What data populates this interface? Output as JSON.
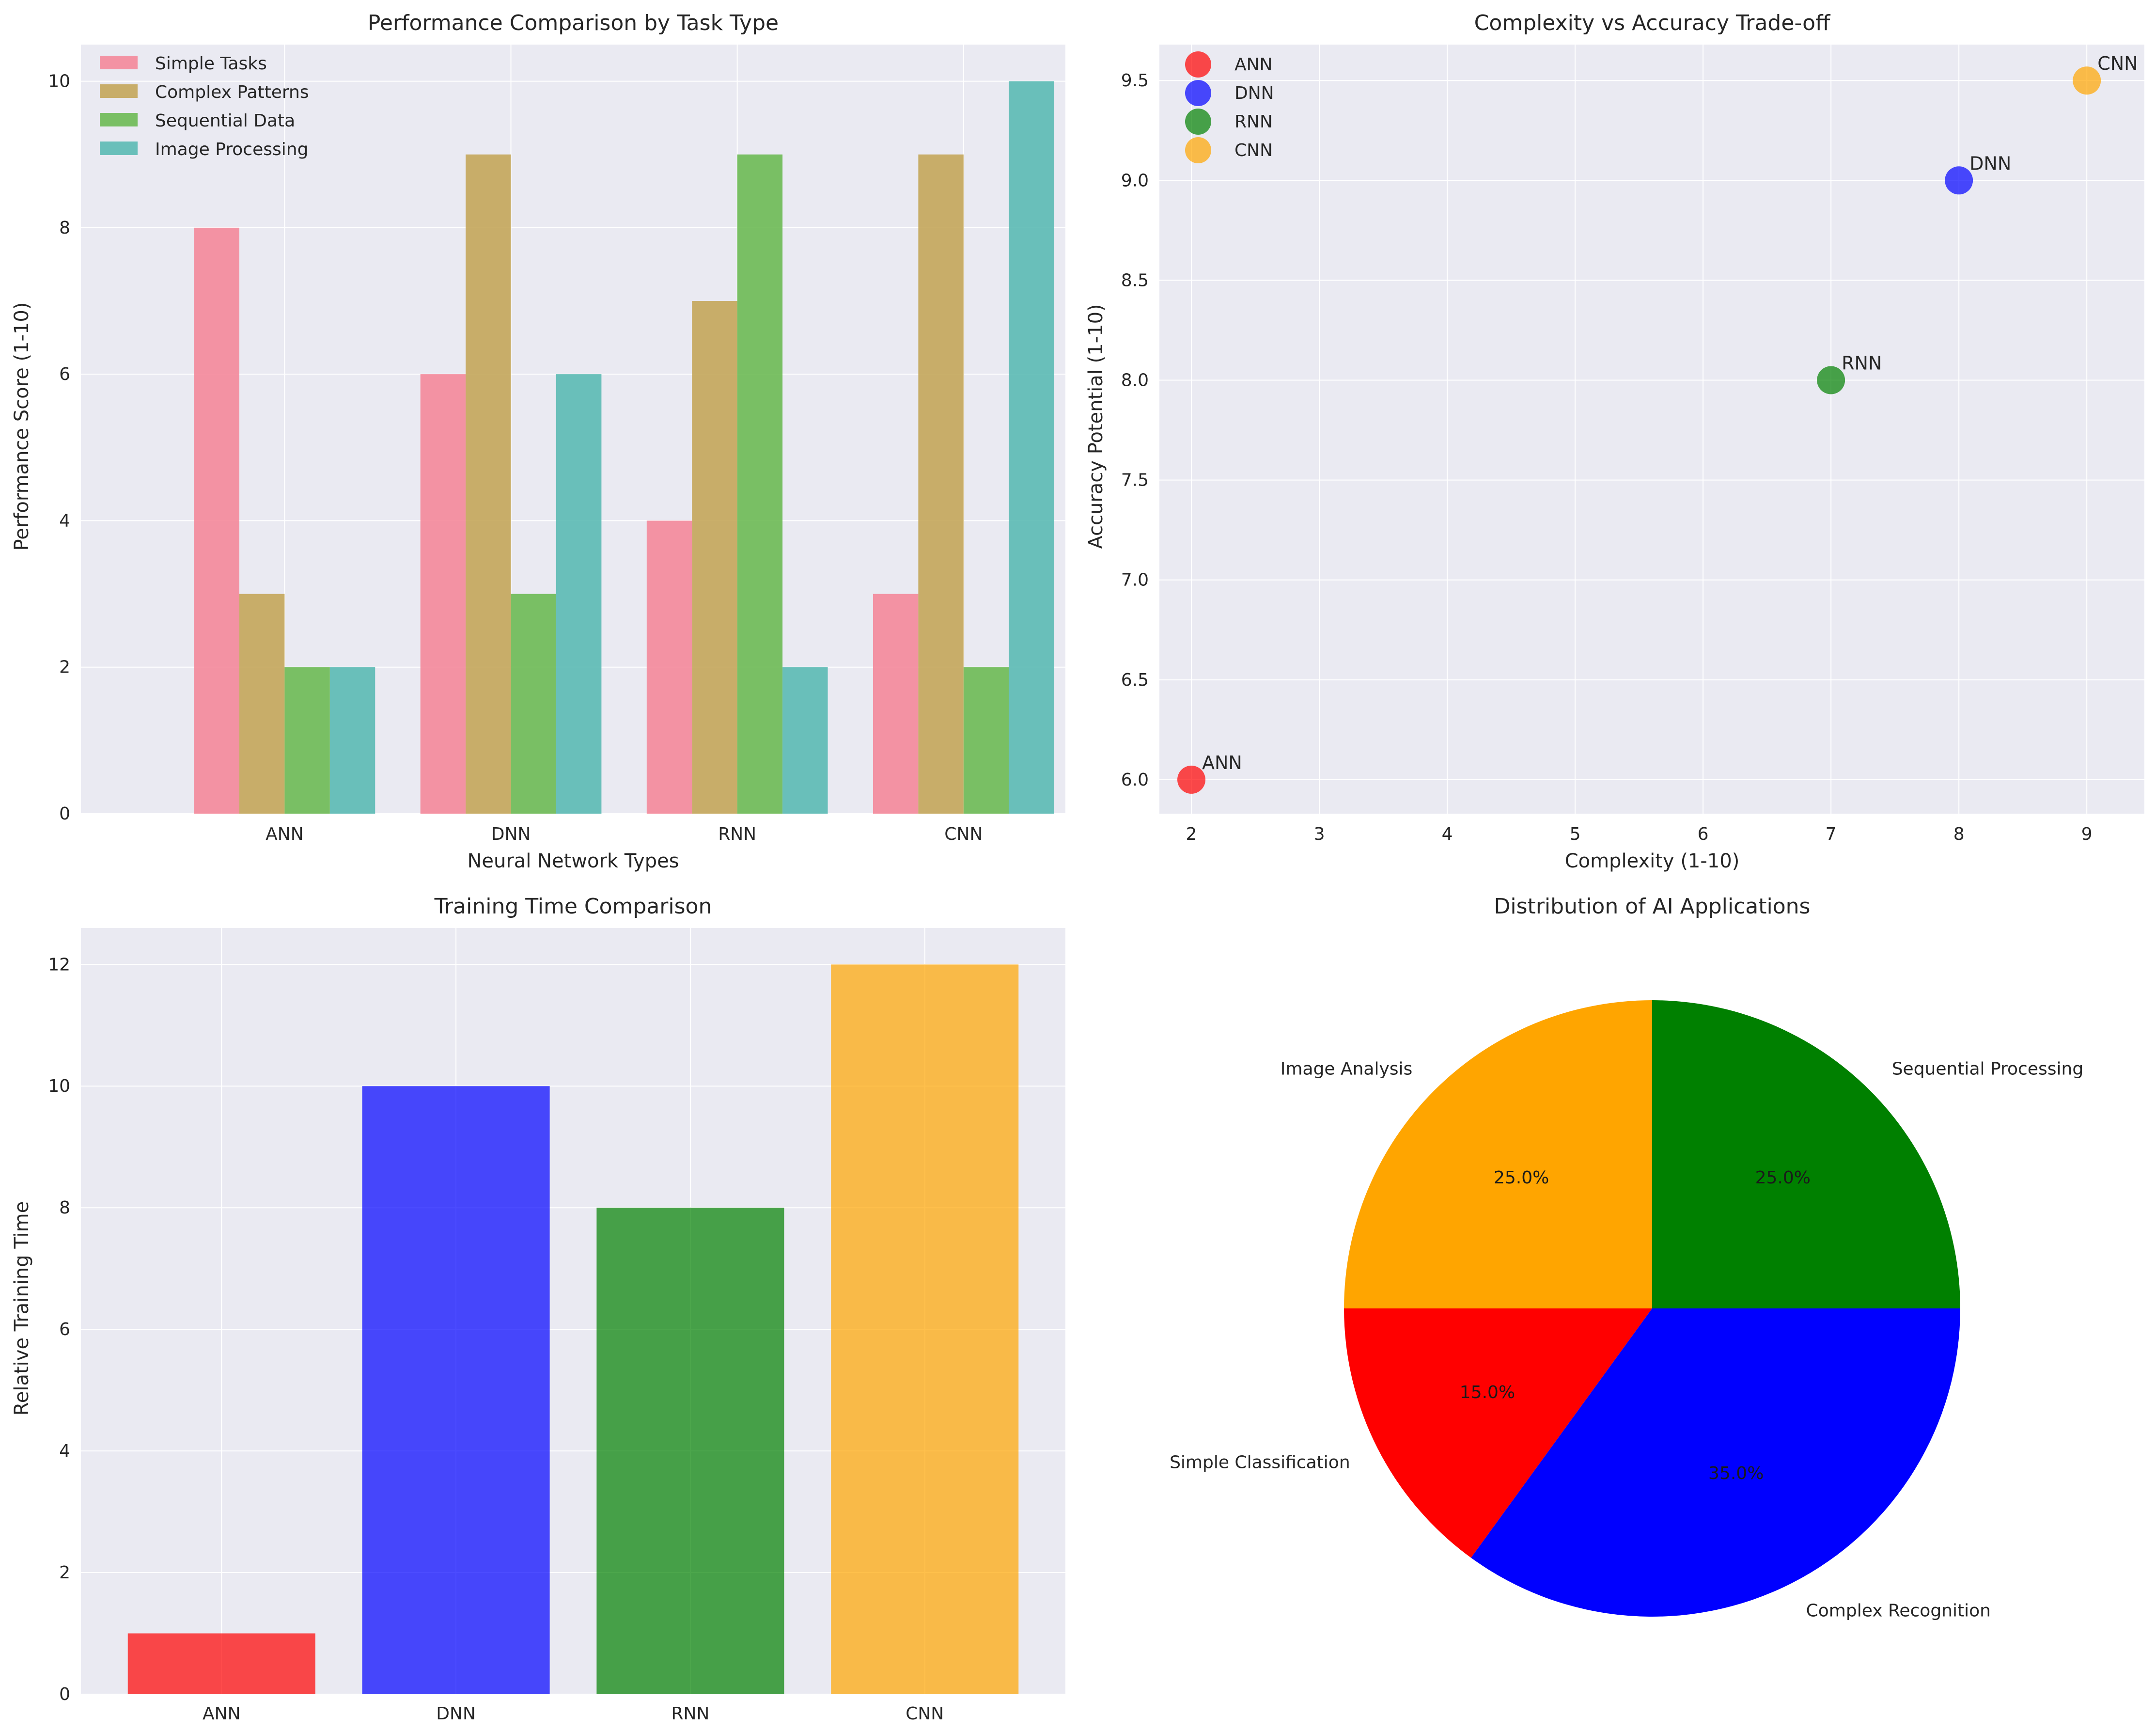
{
  "chart_data": [
    {
      "type": "bar",
      "title": "Performance Comparison by Task Type",
      "xlabel": "Neural Network Types",
      "ylabel": "Performance Score (1-10)",
      "categories": [
        "ANN",
        "DNN",
        "RNN",
        "CNN"
      ],
      "ylim": [
        0,
        10.5
      ],
      "yticks": [
        0,
        2,
        4,
        6,
        8,
        10
      ],
      "grid": true,
      "legend_position": "top-left",
      "series": [
        {
          "name": "Simple Tasks",
          "values": [
            8,
            6,
            4,
            3
          ],
          "color": "#f4889a"
        },
        {
          "name": "Complex Patterns",
          "values": [
            3,
            9,
            7,
            9
          ],
          "color": "#c4a65a"
        },
        {
          "name": "Sequential Data",
          "values": [
            2,
            3,
            9,
            2
          ],
          "color": "#6dba54"
        },
        {
          "name": "Image Processing",
          "values": [
            2,
            6,
            2,
            10
          ],
          "color": "#5bbab4"
        }
      ]
    },
    {
      "type": "scatter",
      "title": "Complexity vs Accuracy Trade-off",
      "xlabel": "Complexity (1-10)",
      "ylabel": "Accuracy Potential (1-10)",
      "xlim": [
        1.75,
        9.45
      ],
      "ylim": [
        5.83,
        9.68
      ],
      "xticks": [
        2,
        3,
        4,
        5,
        6,
        7,
        8,
        9
      ],
      "yticks": [
        6.0,
        6.5,
        7.0,
        7.5,
        8.0,
        8.5,
        9.0,
        9.5
      ],
      "grid": true,
      "legend_position": "top-left",
      "points": [
        {
          "name": "ANN",
          "x": 2,
          "y": 6.0,
          "color": "#ff0000"
        },
        {
          "name": "DNN",
          "x": 8,
          "y": 9.0,
          "color": "#0000ff"
        },
        {
          "name": "RNN",
          "x": 7,
          "y": 8.0,
          "color": "#008000"
        },
        {
          "name": "CNN",
          "x": 9,
          "y": 9.5,
          "color": "#ffa500"
        }
      ]
    },
    {
      "type": "bar",
      "title": "Training Time Comparison",
      "xlabel": "",
      "ylabel": "Relative Training Time",
      "categories": [
        "ANN",
        "DNN",
        "RNN",
        "CNN"
      ],
      "values": [
        1,
        10,
        8,
        12
      ],
      "colors": [
        "#ff0000",
        "#0000ff",
        "#008000",
        "#ffa500"
      ],
      "ylim": [
        0,
        12.6
      ],
      "yticks": [
        0,
        2,
        4,
        6,
        8,
        10,
        12
      ],
      "grid": true
    },
    {
      "type": "pie",
      "title": "Distribution of AI Applications",
      "slices": [
        {
          "label": "Image Analysis",
          "value": 25,
          "pct": "25.0%",
          "color": "#ffa500"
        },
        {
          "label": "Simple Classification",
          "value": 15,
          "pct": "15.0%",
          "color": "#ff0000"
        },
        {
          "label": "Complex Recognition",
          "value": 35,
          "pct": "35.0%",
          "color": "#0000ff"
        },
        {
          "label": "Sequential Processing",
          "value": 25,
          "pct": "25.0%",
          "color": "#008000"
        }
      ]
    }
  ]
}
